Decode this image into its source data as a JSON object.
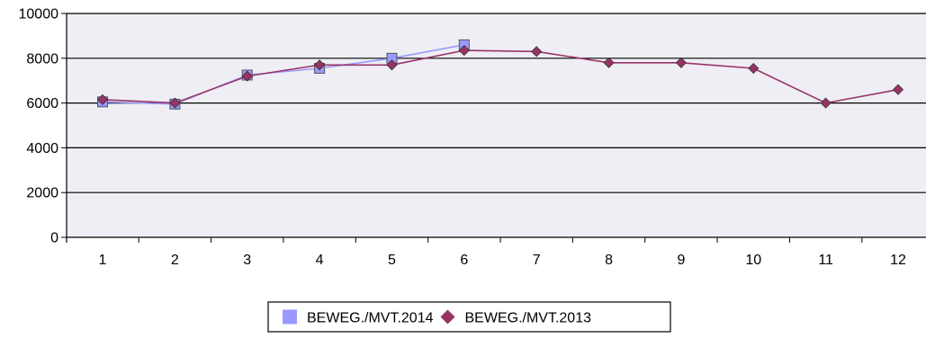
{
  "chart_data": {
    "type": "line",
    "x": [
      1,
      2,
      3,
      4,
      5,
      6,
      7,
      8,
      9,
      10,
      11,
      12
    ],
    "series": [
      {
        "name": "BEWEG./MVT.2014",
        "color": "#9999FF",
        "marker": "square",
        "values": [
          6050,
          5950,
          7250,
          7550,
          8000,
          8600,
          null,
          null,
          null,
          null,
          null,
          null
        ]
      },
      {
        "name": "BEWEG./MVT.2013",
        "color": "#993366",
        "marker": "diamond",
        "values": [
          6150,
          6000,
          7200,
          7700,
          7700,
          8350,
          8300,
          7800,
          7800,
          7550,
          6000,
          6600
        ]
      }
    ],
    "ylim": [
      0,
      10000
    ],
    "yticks": [
      0,
      2000,
      4000,
      6000,
      8000,
      10000
    ],
    "grid": true,
    "plot_background": "#EEEEF4",
    "legend_position": "bottom-center",
    "title": "",
    "xlabel": "",
    "ylabel": ""
  }
}
